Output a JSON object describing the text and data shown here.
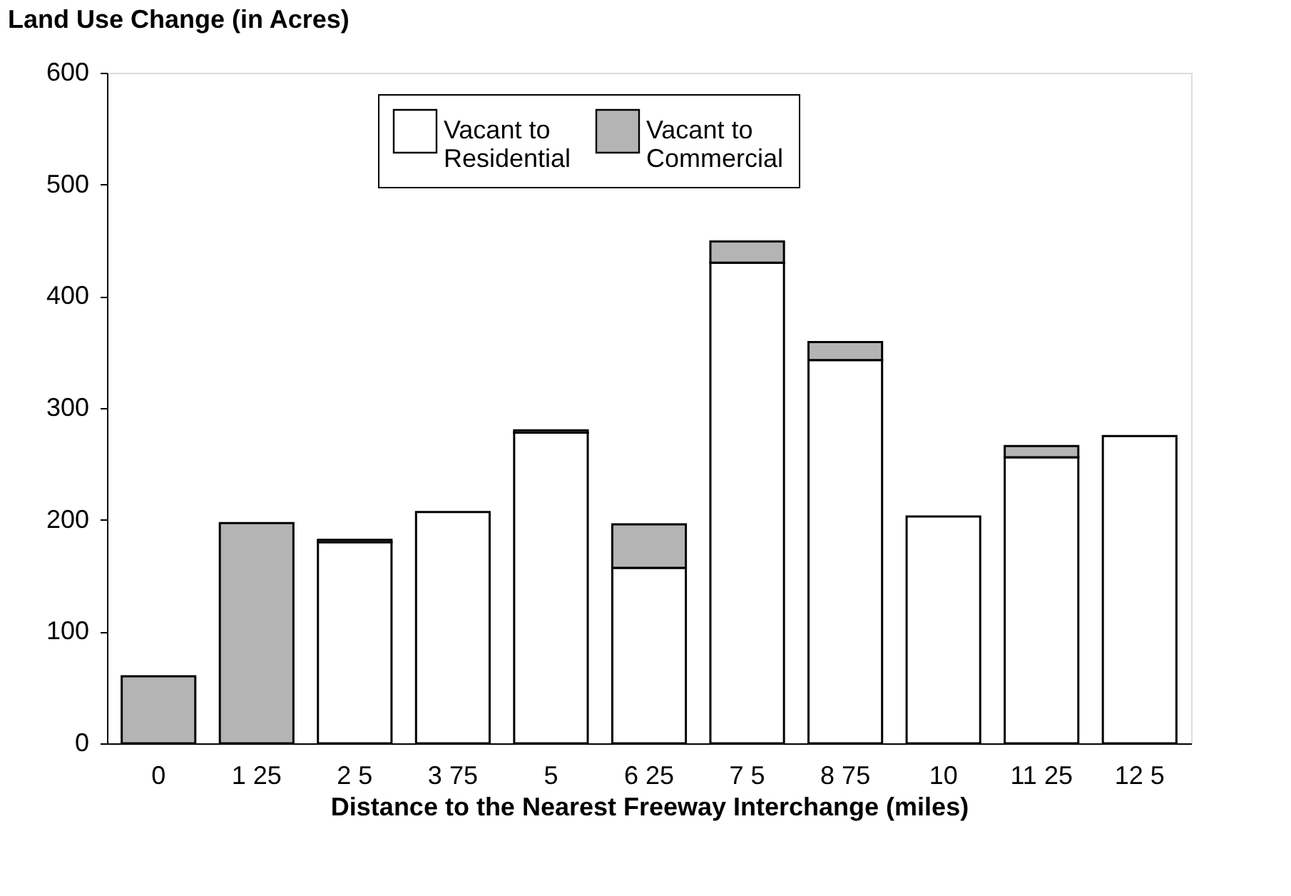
{
  "chart_data": {
    "type": "bar",
    "ylabel": "Land Use Change (in Acres)",
    "xlabel": "Distance to the Nearest Freeway Interchange (miles)",
    "categories": [
      "0",
      "1 25",
      "2 5",
      "3 75",
      "5",
      "6 25",
      "7 5",
      "8 75",
      "10",
      "11 25",
      "12 5"
    ],
    "stacked": true,
    "series": [
      {
        "name": "Vacant to Residential",
        "color": "#ffffff",
        "values": [
          0,
          0,
          180,
          207,
          278,
          157,
          430,
          343,
          203,
          256,
          275
        ]
      },
      {
        "name": "Vacant to Commercial",
        "color": "#b4b4b4",
        "values": [
          60,
          197,
          2,
          0,
          2,
          39,
          19,
          16,
          0,
          10,
          0
        ]
      }
    ],
    "ylim": [
      0,
      600
    ],
    "yticks": [
      0,
      100,
      200,
      300,
      400,
      500,
      600
    ],
    "legend": "top",
    "grid": false
  }
}
